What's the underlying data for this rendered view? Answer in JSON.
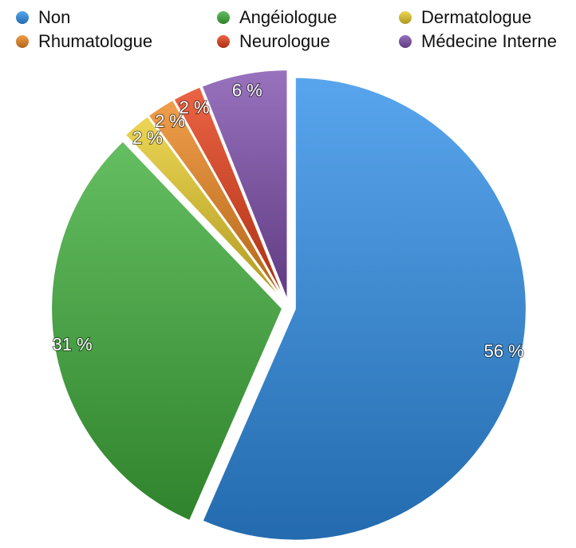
{
  "chart_data": {
    "type": "pie",
    "categories": [
      "Non",
      "Angéiologue",
      "Dermatologue",
      "Rhumatologue",
      "Neurologue",
      "Médecine Interne"
    ],
    "values": [
      56,
      31,
      2,
      2,
      2,
      6
    ],
    "value_labels": [
      "56 %",
      "31 %",
      "2 %",
      "2 %",
      "2 %",
      "6 %"
    ],
    "colors": [
      "#2f8ee8",
      "#3fae3a",
      "#e8cc2a",
      "#ec861e",
      "#e63d16",
      "#7e4fad"
    ],
    "legend": "top"
  }
}
